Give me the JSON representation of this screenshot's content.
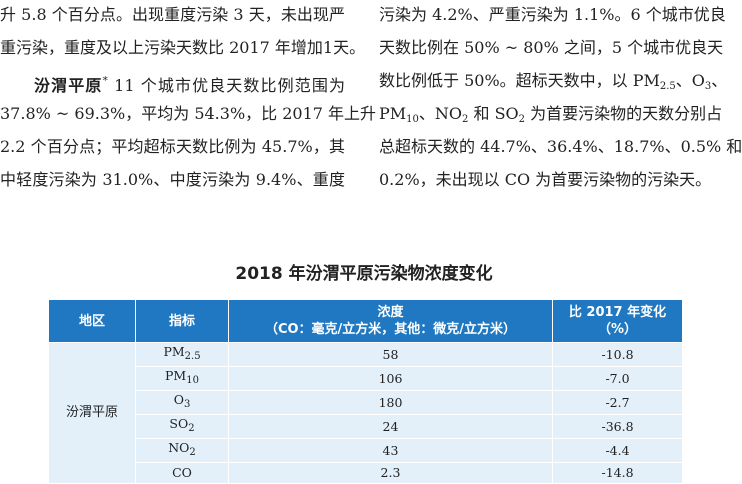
{
  "body": {
    "left": {
      "before": [
        "升 5.8 个百分点。出现重度污染 3 天，未出现严",
        "重污染，重度及以上污染天数比 2017 年增加1天。"
      ],
      "heading": "汾渭平原",
      "heading_note": "*",
      "after": [
        " 11 个城市优良天数比例范围为",
        "37.8% ~ 69.3%，平均为 54.3%，比 2017 年上升",
        "2.2 个百分点；平均超标天数比例为 45.7%，其",
        "中轻度污染为 31.0%、中度污染为 9.4%、重度"
      ]
    },
    "right": [
      [
        "污染为 4.2%、严重污染为 1.1%。6 个城市优良"
      ],
      [
        "天数比例在 50% ~ 80% 之间，5 个城市优良天"
      ],
      [
        "数比例低于 50%。超标天数中，以 PM",
        "2.5",
        "、O",
        "3",
        "、"
      ],
      [
        "PM",
        "10",
        "、NO",
        "2",
        " 和 SO",
        "2",
        " 为首要污染物的天数分别占"
      ],
      [
        "总超标天数的 44.7%、36.4%、18.7%、0.5% 和"
      ],
      [
        "0.2%，未出现以 CO 为首要污染物的污染天。"
      ]
    ]
  },
  "table": {
    "title": "2018 年汾渭平原污染物浓度变化",
    "header": [
      [
        "地区"
      ],
      [
        "指标"
      ],
      [
        "浓度",
        "（CO：毫克/立方米，其他：微克/立方米）"
      ],
      [
        "比 2017 年变化",
        "（%）"
      ]
    ],
    "region": "汾渭平原",
    "rows": [
      [
        [
          "PM",
          "2.5"
        ],
        "58",
        "-10.8"
      ],
      [
        [
          "PM",
          "10"
        ],
        "106",
        "-7.0"
      ],
      [
        [
          "O",
          "3"
        ],
        "180",
        "-2.7"
      ],
      [
        [
          "SO",
          "2"
        ],
        "24",
        "-36.8"
      ],
      [
        [
          "NO",
          "2"
        ],
        "43",
        "-4.4"
      ],
      [
        [
          "CO"
        ],
        "2.3",
        "-14.8"
      ]
    ]
  }
}
